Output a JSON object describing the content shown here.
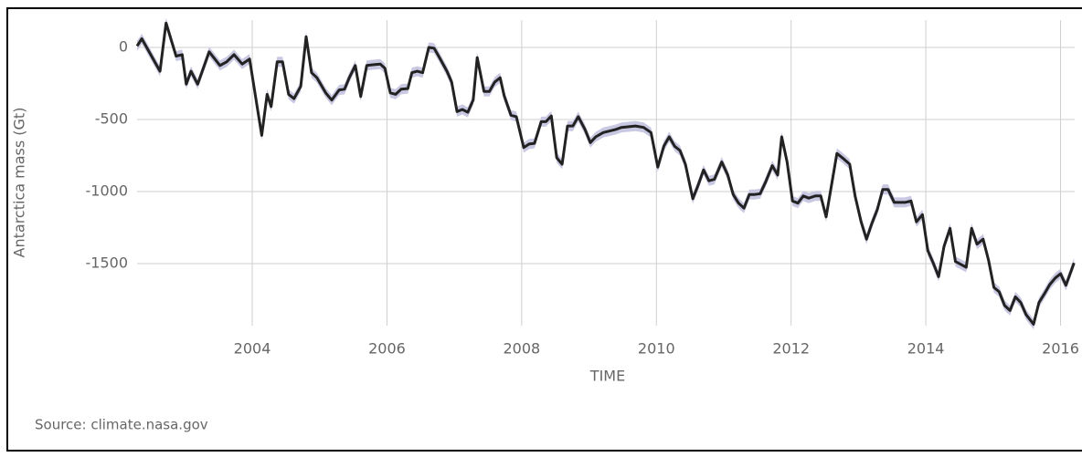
{
  "chart_data": {
    "type": "line",
    "x_label": "TIME",
    "y_label": "Antarctica mass (Gt)",
    "source": "Source: climate.nasa.gov",
    "x": [
      2002.29,
      2002.36,
      2002.63,
      2002.72,
      2002.87,
      2002.96,
      2003.02,
      2003.09,
      2003.19,
      2003.36,
      2003.52,
      2003.62,
      2003.73,
      2003.85,
      2003.96,
      2004.14,
      2004.22,
      2004.28,
      2004.37,
      2004.45,
      2004.54,
      2004.62,
      2004.72,
      2004.8,
      2004.88,
      2004.96,
      2005.09,
      2005.18,
      2005.29,
      2005.37,
      2005.44,
      2005.53,
      2005.61,
      2005.7,
      2005.79,
      2005.9,
      2005.97,
      2006.05,
      2006.13,
      2006.21,
      2006.31,
      2006.37,
      2006.45,
      2006.53,
      2006.62,
      2006.7,
      2006.78,
      2006.89,
      2006.96,
      2007.04,
      2007.12,
      2007.2,
      2007.28,
      2007.34,
      2007.44,
      2007.52,
      2007.6,
      2007.68,
      2007.74,
      2007.84,
      2007.92,
      2008.03,
      2008.11,
      2008.19,
      2008.29,
      2008.36,
      2008.44,
      2008.52,
      2008.6,
      2008.68,
      2008.76,
      2008.84,
      2008.94,
      2009.02,
      2009.1,
      2009.21,
      2009.39,
      2009.48,
      2009.69,
      2009.81,
      2009.92,
      2010.02,
      2010.11,
      2010.19,
      2010.27,
      2010.35,
      2010.43,
      2010.54,
      2010.62,
      2010.7,
      2010.78,
      2010.86,
      2010.97,
      2011.06,
      2011.14,
      2011.22,
      2011.3,
      2011.38,
      2011.46,
      2011.54,
      2011.62,
      2011.72,
      2011.8,
      2011.86,
      2011.94,
      2012.02,
      2012.1,
      2012.18,
      2012.26,
      2012.36,
      2012.44,
      2012.52,
      2012.68,
      2012.76,
      2012.87,
      2012.95,
      2013.04,
      2013.12,
      2013.2,
      2013.28,
      2013.36,
      2013.44,
      2013.53,
      2013.69,
      2013.78,
      2013.86,
      2013.95,
      2014.03,
      2014.11,
      2014.19,
      2014.27,
      2014.36,
      2014.44,
      2014.52,
      2014.6,
      2014.68,
      2014.76,
      2014.85,
      2014.93,
      2015.01,
      2015.09,
      2015.17,
      2015.25,
      2015.33,
      2015.41,
      2015.49,
      2015.6,
      2015.68,
      2015.76,
      2015.84,
      2015.92,
      2016.0,
      2016.08,
      2016.2
    ],
    "values": [
      10,
      60,
      -165,
      170,
      -60,
      -50,
      -255,
      -165,
      -255,
      -30,
      -125,
      -100,
      -50,
      -115,
      -80,
      -610,
      -325,
      -410,
      -100,
      -100,
      -325,
      -355,
      -270,
      75,
      -175,
      -210,
      -315,
      -365,
      -295,
      -290,
      -210,
      -125,
      -340,
      -125,
      -120,
      -115,
      -145,
      -315,
      -325,
      -290,
      -285,
      -175,
      -165,
      -175,
      0,
      -5,
      -70,
      -165,
      -240,
      -445,
      -430,
      -450,
      -365,
      -70,
      -305,
      -305,
      -240,
      -210,
      -335,
      -470,
      -480,
      -695,
      -670,
      -665,
      -515,
      -515,
      -475,
      -765,
      -810,
      -545,
      -545,
      -480,
      -570,
      -660,
      -620,
      -590,
      -570,
      -555,
      -545,
      -555,
      -590,
      -830,
      -685,
      -620,
      -685,
      -715,
      -810,
      -1050,
      -955,
      -850,
      -925,
      -915,
      -795,
      -885,
      -1020,
      -1080,
      -1115,
      -1020,
      -1020,
      -1015,
      -935,
      -820,
      -885,
      -620,
      -795,
      -1065,
      -1080,
      -1030,
      -1045,
      -1030,
      -1030,
      -1175,
      -735,
      -765,
      -810,
      -1030,
      -1210,
      -1330,
      -1220,
      -1125,
      -985,
      -985,
      -1075,
      -1075,
      -1065,
      -1210,
      -1160,
      -1410,
      -1495,
      -1590,
      -1380,
      -1255,
      -1485,
      -1505,
      -1525,
      -1255,
      -1365,
      -1330,
      -1475,
      -1665,
      -1695,
      -1790,
      -1825,
      -1730,
      -1770,
      -1855,
      -1920,
      -1770,
      -1710,
      -1645,
      -1600,
      -1570,
      -1650,
      -1495
    ],
    "error": 35,
    "color": "#222222",
    "error_color": "#c9c8e3",
    "xlim": [
      2002.29,
      2016.21
    ],
    "xticks": [
      2004,
      2006,
      2008,
      2010,
      2012,
      2014,
      2016
    ],
    "ylim": [
      -1930,
      190
    ],
    "yticks": [
      0,
      -500,
      -1000,
      -1500
    ],
    "grid": true
  }
}
